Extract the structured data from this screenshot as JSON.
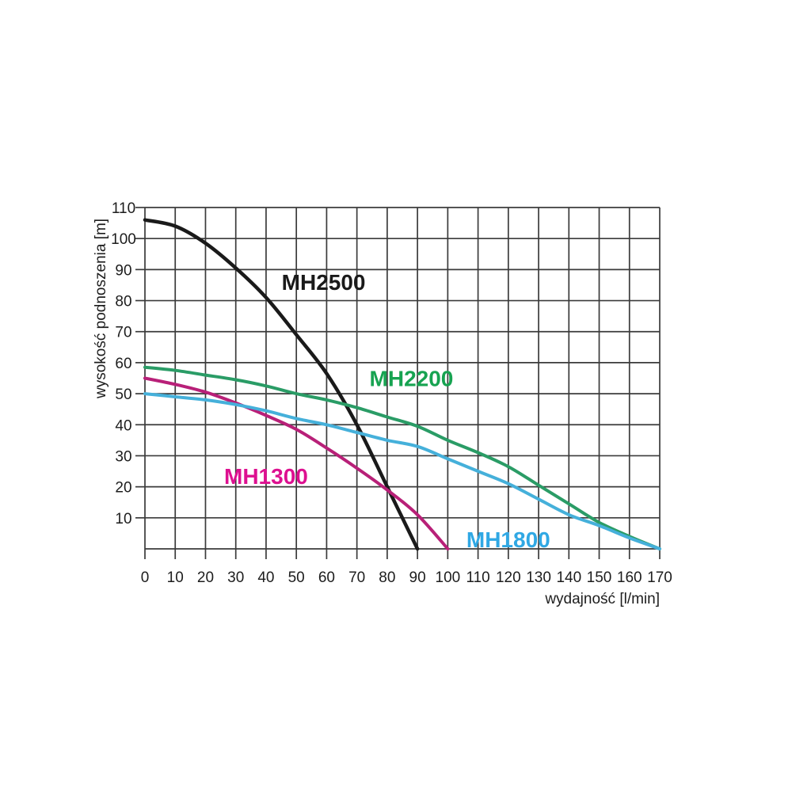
{
  "page": {
    "background": "#ffffff",
    "grid_color": "#3b3b3b",
    "tick_color": "#1d1d1d"
  },
  "chart_data": {
    "type": "line",
    "title": "",
    "xlabel": "wydajność [l/min]",
    "ylabel": "wysokość podnoszenia [m]",
    "xlim": [
      0,
      170
    ],
    "ylim": [
      0,
      110
    ],
    "grid": "on",
    "legend_position": "labels-on-curves",
    "x_ticks": [
      0,
      10,
      20,
      30,
      40,
      50,
      60,
      70,
      80,
      90,
      100,
      110,
      120,
      130,
      140,
      150,
      160,
      170
    ],
    "y_ticks": [
      10,
      20,
      30,
      40,
      50,
      60,
      70,
      80,
      90,
      100,
      110
    ],
    "series": [
      {
        "name": "MH2500",
        "color": "#1a1a1a",
        "label_color": "#1a1a1a",
        "label_pos": {
          "x": 59,
          "y": 86
        },
        "points": [
          [
            0,
            106
          ],
          [
            10,
            104
          ],
          [
            20,
            98.5
          ],
          [
            30,
            90.5
          ],
          [
            40,
            81
          ],
          [
            50,
            69
          ],
          [
            60,
            56.5
          ],
          [
            70,
            40
          ],
          [
            80,
            20
          ],
          [
            90,
            0
          ]
        ]
      },
      {
        "name": "MH2200",
        "color": "#2a9c66",
        "label_color": "#17a351",
        "label_pos": {
          "x": 88,
          "y": 55
        },
        "points": [
          [
            0,
            58.5
          ],
          [
            10,
            57.5
          ],
          [
            20,
            56
          ],
          [
            30,
            54.5
          ],
          [
            40,
            52.5
          ],
          [
            50,
            50
          ],
          [
            60,
            48
          ],
          [
            70,
            45.5
          ],
          [
            80,
            42.5
          ],
          [
            90,
            39.5
          ],
          [
            100,
            35
          ],
          [
            110,
            31
          ],
          [
            120,
            26.5
          ],
          [
            130,
            20.5
          ],
          [
            140,
            14.5
          ],
          [
            150,
            8.5
          ],
          [
            160,
            4
          ],
          [
            170,
            0
          ]
        ]
      },
      {
        "name": "MH1300",
        "color": "#b82078",
        "label_color": "#dd1090",
        "label_pos": {
          "x": 40,
          "y": 23.5
        },
        "points": [
          [
            0,
            55
          ],
          [
            10,
            53
          ],
          [
            20,
            50.5
          ],
          [
            30,
            47
          ],
          [
            40,
            43
          ],
          [
            50,
            38.5
          ],
          [
            60,
            32.5
          ],
          [
            70,
            26
          ],
          [
            80,
            19
          ],
          [
            90,
            11
          ],
          [
            100,
            0
          ]
        ]
      },
      {
        "name": "MH1800",
        "color": "#45b0da",
        "label_color": "#30a8e4",
        "label_pos": {
          "x": 120,
          "y": 3
        },
        "points": [
          [
            0,
            50
          ],
          [
            10,
            49
          ],
          [
            20,
            48
          ],
          [
            30,
            46.5
          ],
          [
            40,
            44.5
          ],
          [
            50,
            42
          ],
          [
            60,
            40
          ],
          [
            70,
            37.5
          ],
          [
            80,
            35
          ],
          [
            90,
            33
          ],
          [
            100,
            29
          ],
          [
            110,
            25
          ],
          [
            120,
            21
          ],
          [
            130,
            16
          ],
          [
            140,
            11
          ],
          [
            150,
            7.5
          ],
          [
            160,
            3.5
          ],
          [
            170,
            0
          ]
        ]
      }
    ]
  }
}
